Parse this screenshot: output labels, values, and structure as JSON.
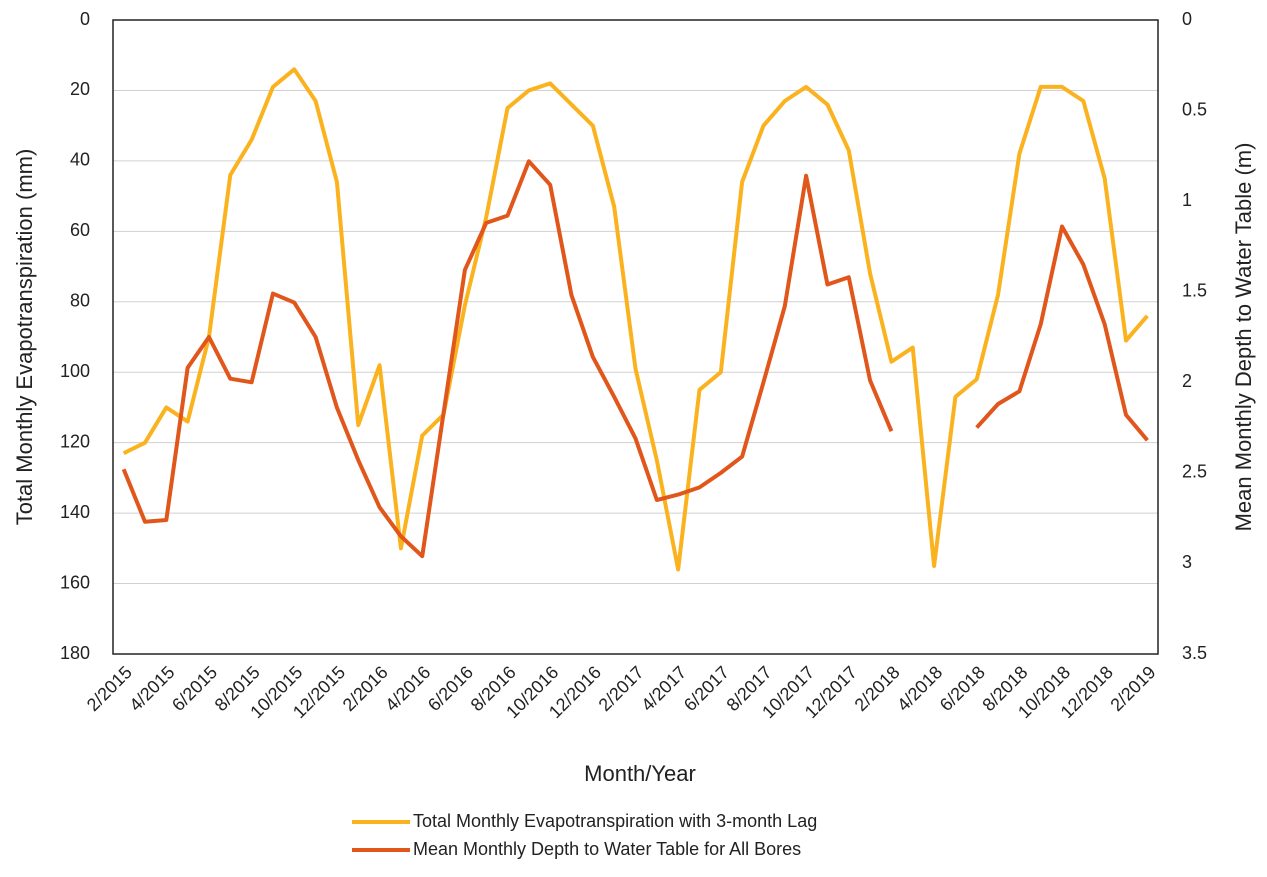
{
  "chart_data": {
    "type": "line",
    "x_label": "Month/Year",
    "y_label": "Total Monthly Evapotranspiration (mm)",
    "y2_label": "Mean Monthly Depth to Water Table (m)",
    "categories": [
      "2/2015",
      null,
      "4/2015",
      null,
      "6/2015",
      null,
      "8/2015",
      null,
      "10/2015",
      null,
      "12/2015",
      null,
      "2/2016",
      null,
      "4/2016",
      null,
      "6/2016",
      null,
      "8/2016",
      null,
      "10/2016",
      null,
      "12/2016",
      null,
      "2/2017",
      null,
      "4/2017",
      null,
      "6/2017",
      null,
      "8/2017",
      null,
      "10/2017",
      null,
      "12/2017",
      null,
      "2/2018",
      null,
      "4/2018",
      null,
      "6/2018",
      null,
      "8/2018",
      null,
      "10/2018",
      null,
      "12/2018",
      null,
      "2/2019"
    ],
    "ylim": [
      180,
      0
    ],
    "yticks": [
      0,
      20,
      40,
      60,
      80,
      100,
      120,
      140,
      160,
      180
    ],
    "y2lim": [
      3.5,
      0
    ],
    "y2ticks": [
      0,
      0.5,
      1,
      1.5,
      2,
      2.5,
      3,
      3.5
    ],
    "grid": true,
    "legend": "bottom",
    "series": [
      {
        "name": "Total Monthly Evapotranspiration with 3-month Lag",
        "color": "#fbb21f",
        "axis": "y",
        "values": [
          123,
          120,
          110,
          114,
          90,
          44,
          34,
          19,
          14,
          23,
          46,
          115,
          98,
          150,
          118,
          112,
          81,
          56,
          25,
          20,
          18,
          24,
          30,
          53,
          99,
          125,
          156,
          105,
          100,
          46,
          30,
          23,
          19,
          24,
          37,
          72,
          97,
          93,
          155,
          107,
          102,
          78,
          38,
          19,
          19,
          23,
          45,
          91,
          84
        ]
      },
      {
        "name": "Mean Monthly Depth to Water Table for All Bores",
        "color": "#e0561b",
        "axis": "y2",
        "values": [
          2.48,
          2.77,
          2.76,
          1.92,
          1.75,
          1.98,
          2.0,
          1.51,
          1.56,
          1.75,
          2.14,
          2.43,
          2.69,
          2.85,
          2.96,
          2.17,
          1.38,
          1.12,
          1.08,
          0.78,
          0.91,
          1.52,
          1.86,
          2.08,
          2.31,
          2.65,
          2.62,
          2.58,
          2.5,
          2.41,
          2.0,
          1.58,
          0.86,
          1.46,
          1.42,
          1.99,
          2.27,
          null,
          null,
          null,
          2.25,
          2.12,
          2.05,
          1.68,
          1.14,
          1.35,
          1.68,
          2.18,
          2.32
        ]
      }
    ]
  }
}
